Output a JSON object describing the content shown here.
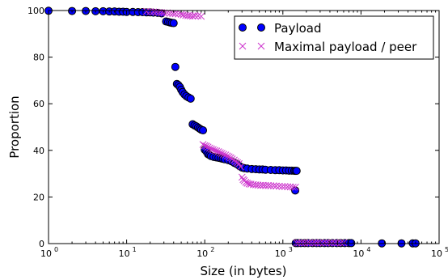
{
  "chart_data": {
    "type": "scatter",
    "xlabel": "Size (in bytes)",
    "ylabel": "Proportion",
    "xscale": "log",
    "xlim": [
      1,
      100000
    ],
    "ylim": [
      0,
      100
    ],
    "x_ticks": [
      1,
      10,
      100,
      1000,
      10000,
      100000
    ],
    "x_tick_labels": [
      {
        "base": "10",
        "exp": "0"
      },
      {
        "base": "10",
        "exp": "1"
      },
      {
        "base": "10",
        "exp": "2"
      },
      {
        "base": "10",
        "exp": "3"
      },
      {
        "base": "10",
        "exp": "4"
      },
      {
        "base": "10",
        "exp": "5"
      }
    ],
    "y_ticks": [
      0,
      20,
      40,
      60,
      80,
      100
    ],
    "y_tick_labels": [
      "0",
      "20",
      "40",
      "60",
      "80",
      "100"
    ],
    "grid": false,
    "legend_position": "top-right",
    "series": [
      {
        "name": "Payload",
        "marker": "circle",
        "color": "#0000ff",
        "edge_color": "#000000",
        "points": [
          [
            1,
            99.9
          ],
          [
            2,
            99.8
          ],
          [
            3,
            99.8
          ],
          [
            4,
            99.7
          ],
          [
            5,
            99.7
          ],
          [
            6,
            99.6
          ],
          [
            7,
            99.6
          ],
          [
            8,
            99.5
          ],
          [
            9,
            99.5
          ],
          [
            10,
            99.4
          ],
          [
            12,
            99.4
          ],
          [
            14,
            99.3
          ],
          [
            16,
            99.3
          ],
          [
            18,
            99.2
          ],
          [
            20,
            99.2
          ],
          [
            22,
            99.1
          ],
          [
            25,
            99.0
          ],
          [
            28,
            98.8
          ],
          [
            32,
            95.3
          ],
          [
            34,
            95.1
          ],
          [
            36,
            94.9
          ],
          [
            38,
            94.7
          ],
          [
            40,
            94.6
          ],
          [
            42,
            75.8
          ],
          [
            44,
            68.5
          ],
          [
            46,
            68.0
          ],
          [
            48,
            67.2
          ],
          [
            50,
            66.0
          ],
          [
            52,
            65.0
          ],
          [
            55,
            64.0
          ],
          [
            58,
            63.3
          ],
          [
            62,
            62.7
          ],
          [
            66,
            62.2
          ],
          [
            70,
            51.2
          ],
          [
            74,
            50.7
          ],
          [
            78,
            50.3
          ],
          [
            82,
            49.8
          ],
          [
            86,
            49.3
          ],
          [
            90,
            48.9
          ],
          [
            95,
            48.6
          ],
          [
            100,
            40.3
          ],
          [
            105,
            39.5
          ],
          [
            110,
            38.4
          ],
          [
            115,
            38.0
          ],
          [
            120,
            37.6
          ],
          [
            130,
            37.2
          ],
          [
            140,
            37.0
          ],
          [
            150,
            36.8
          ],
          [
            160,
            36.6
          ],
          [
            170,
            36.4
          ],
          [
            180,
            36.2
          ],
          [
            200,
            35.8
          ],
          [
            220,
            35.3
          ],
          [
            240,
            34.6
          ],
          [
            260,
            34.0
          ],
          [
            280,
            33.2
          ],
          [
            300,
            32.6
          ],
          [
            320,
            32.4
          ],
          [
            350,
            32.2
          ],
          [
            400,
            32.0
          ],
          [
            450,
            31.9
          ],
          [
            500,
            31.8
          ],
          [
            550,
            31.8
          ],
          [
            600,
            31.7
          ],
          [
            700,
            31.6
          ],
          [
            800,
            31.5
          ],
          [
            900,
            31.5
          ],
          [
            1000,
            31.4
          ],
          [
            1100,
            31.4
          ],
          [
            1200,
            31.3
          ],
          [
            1300,
            31.3
          ],
          [
            1400,
            31.2
          ],
          [
            1450,
            31.2
          ],
          [
            1500,
            31.2
          ],
          [
            1440,
            22.8
          ],
          [
            1460,
            0.2
          ],
          [
            1550,
            0.2
          ],
          [
            1700,
            0.2
          ],
          [
            1900,
            0.2
          ],
          [
            2100,
            0.2
          ],
          [
            2400,
            0.2
          ],
          [
            2700,
            0.2
          ],
          [
            3000,
            0.2
          ],
          [
            3400,
            0.2
          ],
          [
            3800,
            0.2
          ],
          [
            4300,
            0.2
          ],
          [
            4900,
            0.2
          ],
          [
            5500,
            0.2
          ],
          [
            6200,
            0.2
          ],
          [
            7000,
            0.2
          ],
          [
            7500,
            0.2
          ],
          [
            18500,
            0.1
          ],
          [
            33000,
            0.1
          ],
          [
            46000,
            0.1
          ],
          [
            50000,
            0.1
          ]
        ]
      },
      {
        "name": "Maximal payload / peer",
        "marker": "x",
        "color": "#cc33cc",
        "points": [
          [
            18,
            99.6
          ],
          [
            20,
            99.5
          ],
          [
            22,
            99.4
          ],
          [
            24,
            99.3
          ],
          [
            26,
            99.2
          ],
          [
            28,
            99.1
          ],
          [
            30,
            99.0
          ],
          [
            33,
            99.0
          ],
          [
            36,
            98.8
          ],
          [
            39,
            98.7
          ],
          [
            42,
            98.6
          ],
          [
            46,
            98.5
          ],
          [
            50,
            98.4
          ],
          [
            53,
            98.1
          ],
          [
            57,
            97.9
          ],
          [
            61,
            97.8
          ],
          [
            65,
            97.7
          ],
          [
            70,
            97.6
          ],
          [
            75,
            97.8
          ],
          [
            82,
            97.7
          ],
          [
            90,
            97.5
          ],
          [
            95,
            42.5
          ],
          [
            100,
            42.0
          ],
          [
            105,
            41.8
          ],
          [
            110,
            41.4
          ],
          [
            116,
            41.0
          ],
          [
            122,
            40.6
          ],
          [
            128,
            40.3
          ],
          [
            135,
            40.0
          ],
          [
            142,
            39.7
          ],
          [
            150,
            39.4
          ],
          [
            158,
            39.0
          ],
          [
            166,
            38.7
          ],
          [
            175,
            38.3
          ],
          [
            185,
            38.0
          ],
          [
            195,
            37.6
          ],
          [
            205,
            37.2
          ],
          [
            215,
            36.8
          ],
          [
            225,
            36.3
          ],
          [
            238,
            35.8
          ],
          [
            250,
            35.2
          ],
          [
            262,
            34.7
          ],
          [
            275,
            34.3
          ],
          [
            288,
            33.0
          ],
          [
            300,
            28.5
          ],
          [
            310,
            27.5
          ],
          [
            320,
            27.0
          ],
          [
            335,
            26.3
          ],
          [
            350,
            25.9
          ],
          [
            370,
            25.6
          ],
          [
            390,
            25.5
          ],
          [
            420,
            25.3
          ],
          [
            450,
            25.2
          ],
          [
            480,
            25.1
          ],
          [
            520,
            25.0
          ],
          [
            560,
            25.0
          ],
          [
            600,
            24.9
          ],
          [
            650,
            24.9
          ],
          [
            700,
            24.8
          ],
          [
            760,
            24.8
          ],
          [
            820,
            24.7
          ],
          [
            900,
            24.6
          ],
          [
            980,
            24.5
          ],
          [
            1060,
            24.5
          ],
          [
            1150,
            24.4
          ],
          [
            1250,
            24.3
          ],
          [
            1350,
            24.2
          ],
          [
            1450,
            24.2
          ],
          [
            1500,
            0.3
          ],
          [
            1600,
            0.3
          ],
          [
            1750,
            0.3
          ],
          [
            1900,
            0.3
          ],
          [
            2050,
            0.3
          ],
          [
            2200,
            0.3
          ],
          [
            2400,
            0.3
          ],
          [
            2600,
            0.3
          ],
          [
            2800,
            0.3
          ],
          [
            3000,
            0.3
          ],
          [
            3300,
            0.3
          ],
          [
            3600,
            0.3
          ],
          [
            3900,
            0.3
          ],
          [
            4200,
            0.3
          ],
          [
            4600,
            0.3
          ],
          [
            5000,
            0.3
          ],
          [
            5500,
            0.3
          ],
          [
            6000,
            0.3
          ]
        ]
      }
    ]
  }
}
